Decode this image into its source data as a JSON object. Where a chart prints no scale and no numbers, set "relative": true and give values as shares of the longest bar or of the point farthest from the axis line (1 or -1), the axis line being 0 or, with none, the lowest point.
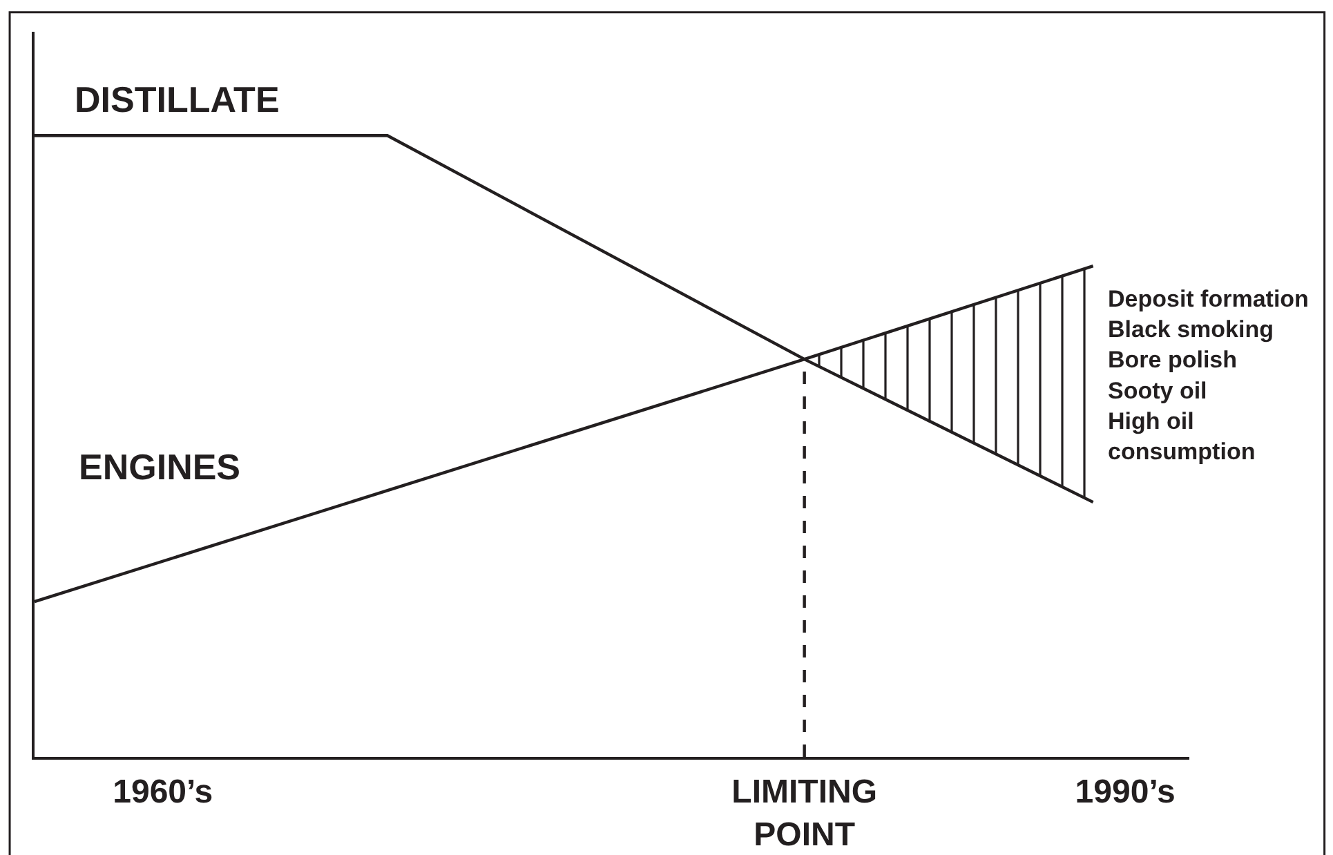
{
  "chart_data": {
    "type": "line",
    "relative": true,
    "marker": "none",
    "line_style": "solid",
    "xlim": [
      1956,
      1992
    ],
    "xticks": [
      {
        "value": 1960,
        "label": "1960’s"
      },
      {
        "value": 1980,
        "label": "LIMITING\nPOINT"
      },
      {
        "value": 1990,
        "label": "1990’s"
      }
    ],
    "series": [
      {
        "name": "DISTILLATE",
        "color": "#231f20",
        "x": [
          1956,
          1967,
          1980,
          1989
        ],
        "values": [
          1,
          1,
          0.64,
          0.41
        ]
      },
      {
        "name": "ENGINES",
        "color": "#231f20",
        "x": [
          1956,
          1980,
          1989
        ],
        "values": [
          0.25,
          0.64,
          0.79
        ],
        "lower": [
          null,
          0.64,
          0.41
        ],
        "upper": [
          null,
          0.64,
          0.79
        ]
      },
      {
        "type": "line",
        "color": "#231f20",
        "x": [
          1980,
          1980
        ],
        "values": [
          0,
          0.64
        ],
        "line_style": "dashed"
      }
    ],
    "annotations": [
      {
        "text": "Deposit formation\nBlack smoking\nBore polish\nSooty oil\nHigh oil\nconsumption",
        "x": 1989,
        "y": 0.6
      }
    ]
  }
}
